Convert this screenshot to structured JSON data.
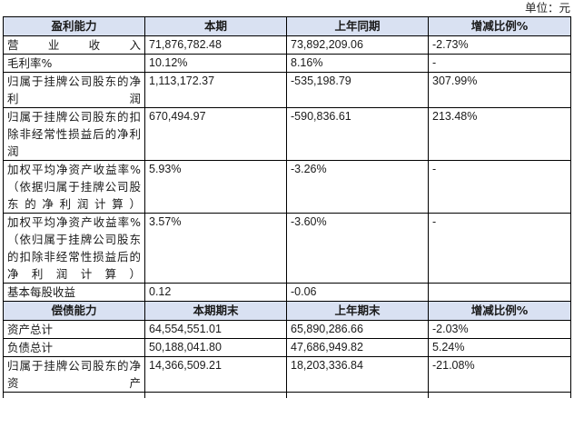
{
  "unit_label": "单位：元",
  "profit_section": {
    "headers": [
      "盈利能力",
      "本期",
      "上年同期",
      "增减比例%"
    ],
    "rows": [
      {
        "label": "营业收入",
        "current": "71,876,782.48",
        "previous": "73,892,209.06",
        "change": "-2.73%"
      },
      {
        "label": "毛利率%",
        "current": "10.12%",
        "previous": "8.16%",
        "change": "-"
      },
      {
        "label": "归属于挂牌公司股东的净利润",
        "current": "1,113,172.37",
        "previous": "-535,198.79",
        "change": "307.99%"
      },
      {
        "label": "归属于挂牌公司股东的扣除非经常性损益后的净利润",
        "current": "670,494.97",
        "previous": "-590,836.61",
        "change": "213.48%"
      },
      {
        "label": "加权平均净资产收益率%（依据归属于挂牌公司股东的净利润计算）",
        "current": "5.93%",
        "previous": "-3.26%",
        "change": "-"
      },
      {
        "label": "加权平均净资产收益率%（依归属于挂牌公司股东的扣除非经常性损益后的净利润计算）",
        "current": "3.57%",
        "previous": "-3.60%",
        "change": "-"
      },
      {
        "label": "基本每股收益",
        "current": "0.12",
        "previous": "-0.06",
        "change": ""
      }
    ]
  },
  "solvency_section": {
    "headers": [
      "偿债能力",
      "本期期末",
      "上年期末",
      "增减比例%"
    ],
    "rows": [
      {
        "label": "资产总计",
        "current": "64,554,551.01",
        "previous": "65,890,286.66",
        "change": "-2.03%"
      },
      {
        "label": "负债总计",
        "current": "50,188,041.80",
        "previous": "47,686,949.82",
        "change": "5.24%"
      },
      {
        "label": "归属于挂牌公司股东的净资产",
        "current": "14,366,509.21",
        "previous": "18,203,336.84",
        "change": "-21.08%"
      }
    ]
  }
}
